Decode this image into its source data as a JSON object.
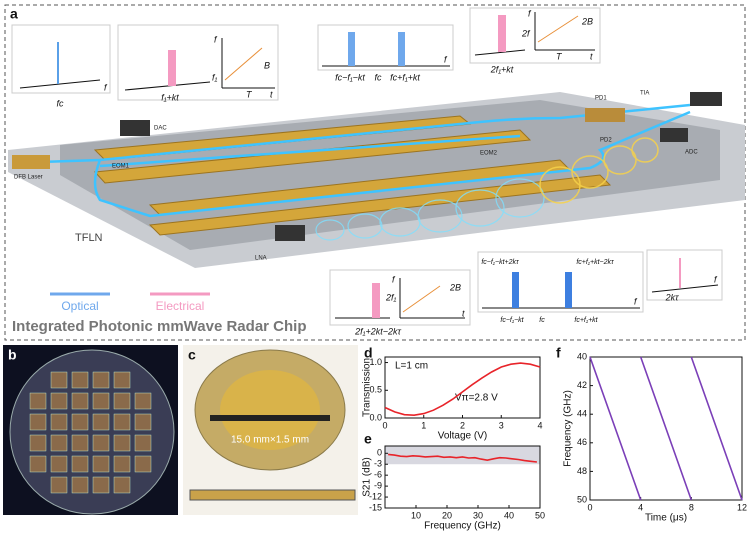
{
  "figure": {
    "panel_labels": [
      "a",
      "b",
      "c",
      "d",
      "e",
      "f"
    ],
    "a": {
      "title": "Integrated Photonic mmWave Radar Chip",
      "legend": [
        "Optical",
        "Electrical"
      ],
      "components": [
        "DFB Laser",
        "DAC",
        "EOM1",
        "EOM2",
        "TFLN",
        "LNA",
        "PD1",
        "TIA",
        "PD2",
        "ADC"
      ],
      "insets": [
        [
          "fc",
          "f"
        ],
        [
          "f₁+kt",
          "f",
          "t",
          "f₁",
          "B",
          "T"
        ],
        [
          "fc−f₁−kt",
          "fc",
          "fc+f₁+kt",
          "f"
        ],
        [
          "2f₁+kt",
          "f",
          "2f",
          "2B",
          "T",
          "t"
        ],
        [
          "2f₁+2kt−2kτ",
          "f",
          "2f₁",
          "2B",
          "t"
        ],
        [
          "fc−f₁−kt+2kτ",
          "fc+f₁+kt−2kτ",
          "fc−f₁−kt",
          "fc",
          "fc+f₁+kt",
          "f"
        ],
        [
          "2kτ",
          "f"
        ]
      ]
    },
    "c": {
      "dimension": "15.0 mm×1.5 mm"
    }
  },
  "chart_data": [
    {
      "type": "line",
      "xlabel": "Voltage (V)",
      "ylabel": "Transmission",
      "x": [
        0,
        0.25,
        0.5,
        0.75,
        1,
        1.25,
        1.5,
        1.75,
        2,
        2.25,
        2.5,
        2.75,
        3,
        3.25,
        3.5,
        3.75,
        4
      ],
      "series": [
        {
          "color": "#e8242a",
          "values": [
            0.19,
            0.11,
            0.06,
            0.05,
            0.08,
            0.14,
            0.23,
            0.34,
            0.47,
            0.6,
            0.72,
            0.83,
            0.92,
            0.97,
            0.99,
            0.97,
            0.92
          ]
        }
      ],
      "xlim": [
        0,
        4
      ],
      "xticks": [
        0,
        1,
        2,
        3,
        4
      ],
      "ylim": [
        0,
        1.1
      ],
      "yticks": [
        {
          "value": 0,
          "label": "0.0"
        },
        0.5,
        {
          "value": 1,
          "label": "1.0"
        }
      ],
      "annotations": [
        "L=1 cm",
        "Vπ=2.8 V"
      ]
    },
    {
      "type": "line",
      "xlabel": "Frequency (GHz)",
      "ylabel": "S21 (dB)",
      "x": [
        1,
        3,
        5,
        7,
        9,
        11,
        13,
        15,
        17,
        19,
        21,
        23,
        25,
        27,
        29,
        31,
        33,
        35,
        37,
        39,
        41,
        43,
        45,
        47,
        49
      ],
      "series": [
        {
          "color": "#e8242a",
          "values": [
            -0.3,
            -0.5,
            -0.8,
            -0.9,
            -0.7,
            -0.8,
            -1.0,
            -0.9,
            -0.8,
            -1.1,
            -1.0,
            -1.2,
            -1.0,
            -1.3,
            -1.2,
            -1.6,
            -1.9,
            -1.5,
            -1.2,
            -1.3,
            -1.5,
            -1.7,
            -2.0,
            -2.2,
            -2.4
          ]
        }
      ],
      "xlim": [
        0,
        50
      ],
      "xticks": [
        10,
        20,
        30,
        40,
        50
      ],
      "ylim": [
        -15,
        2
      ],
      "yticks": [
        0,
        -3,
        -6,
        -9,
        -12,
        -15
      ],
      "highlight_range": [
        -3,
        2
      ]
    },
    {
      "type": "line",
      "xlabel": "Time (μs)",
      "ylabel": "Frequency (GHz)",
      "x": [
        0,
        4,
        4,
        4,
        8,
        8,
        8,
        12
      ],
      "series": [
        {
          "color": "#7b3fb8",
          "values": [
            40,
            50,
            null,
            40,
            50,
            null,
            40,
            50
          ]
        }
      ],
      "xlim": [
        0,
        12
      ],
      "xticks": [
        0,
        4,
        8,
        12
      ],
      "ylim": [
        50,
        40
      ],
      "yticks": [
        40,
        42,
        44,
        46,
        48,
        50
      ]
    }
  ]
}
